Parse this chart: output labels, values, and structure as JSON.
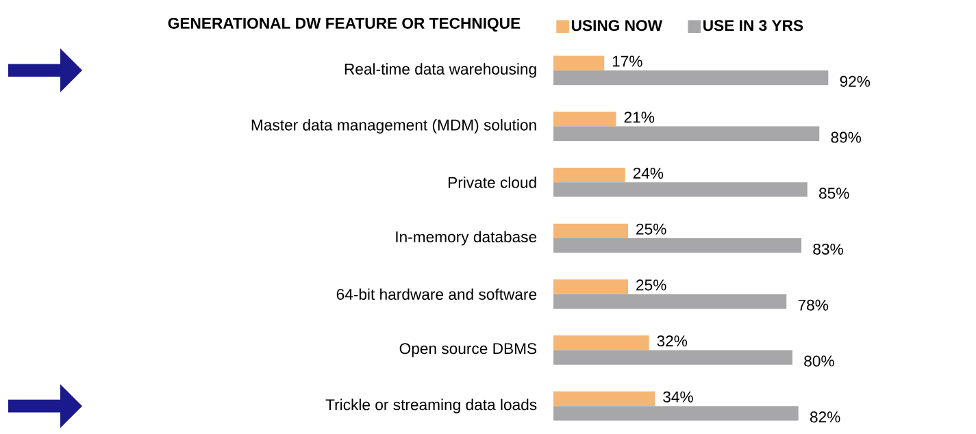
{
  "chart_data": {
    "type": "bar",
    "orientation": "horizontal",
    "ylabel": "GENERATIONAL DW FEATURE OR TECHNIQUE",
    "categories": [
      "Real-time data warehousing",
      "Master data management (MDM) solution",
      "Private cloud",
      "In-memory database",
      "64-bit hardware and software",
      "Open source DBMS",
      "Trickle or streaming data loads"
    ],
    "series": [
      {
        "name": "USING NOW",
        "color": "#f6b673",
        "values": [
          17,
          21,
          24,
          25,
          25,
          32,
          34
        ],
        "value_labels": [
          "17%",
          "21%",
          "24%",
          "25%",
          "25%",
          "32%",
          "34%"
        ]
      },
      {
        "name": "USE IN 3 YRS",
        "color": "#a7a7a9",
        "values": [
          92,
          89,
          85,
          83,
          78,
          80,
          82
        ],
        "value_labels": [
          "92%",
          "89%",
          "85%",
          "83%",
          "78%",
          "80%",
          "82%"
        ]
      }
    ],
    "legend": "top",
    "tick_labels": "y"
  }
}
